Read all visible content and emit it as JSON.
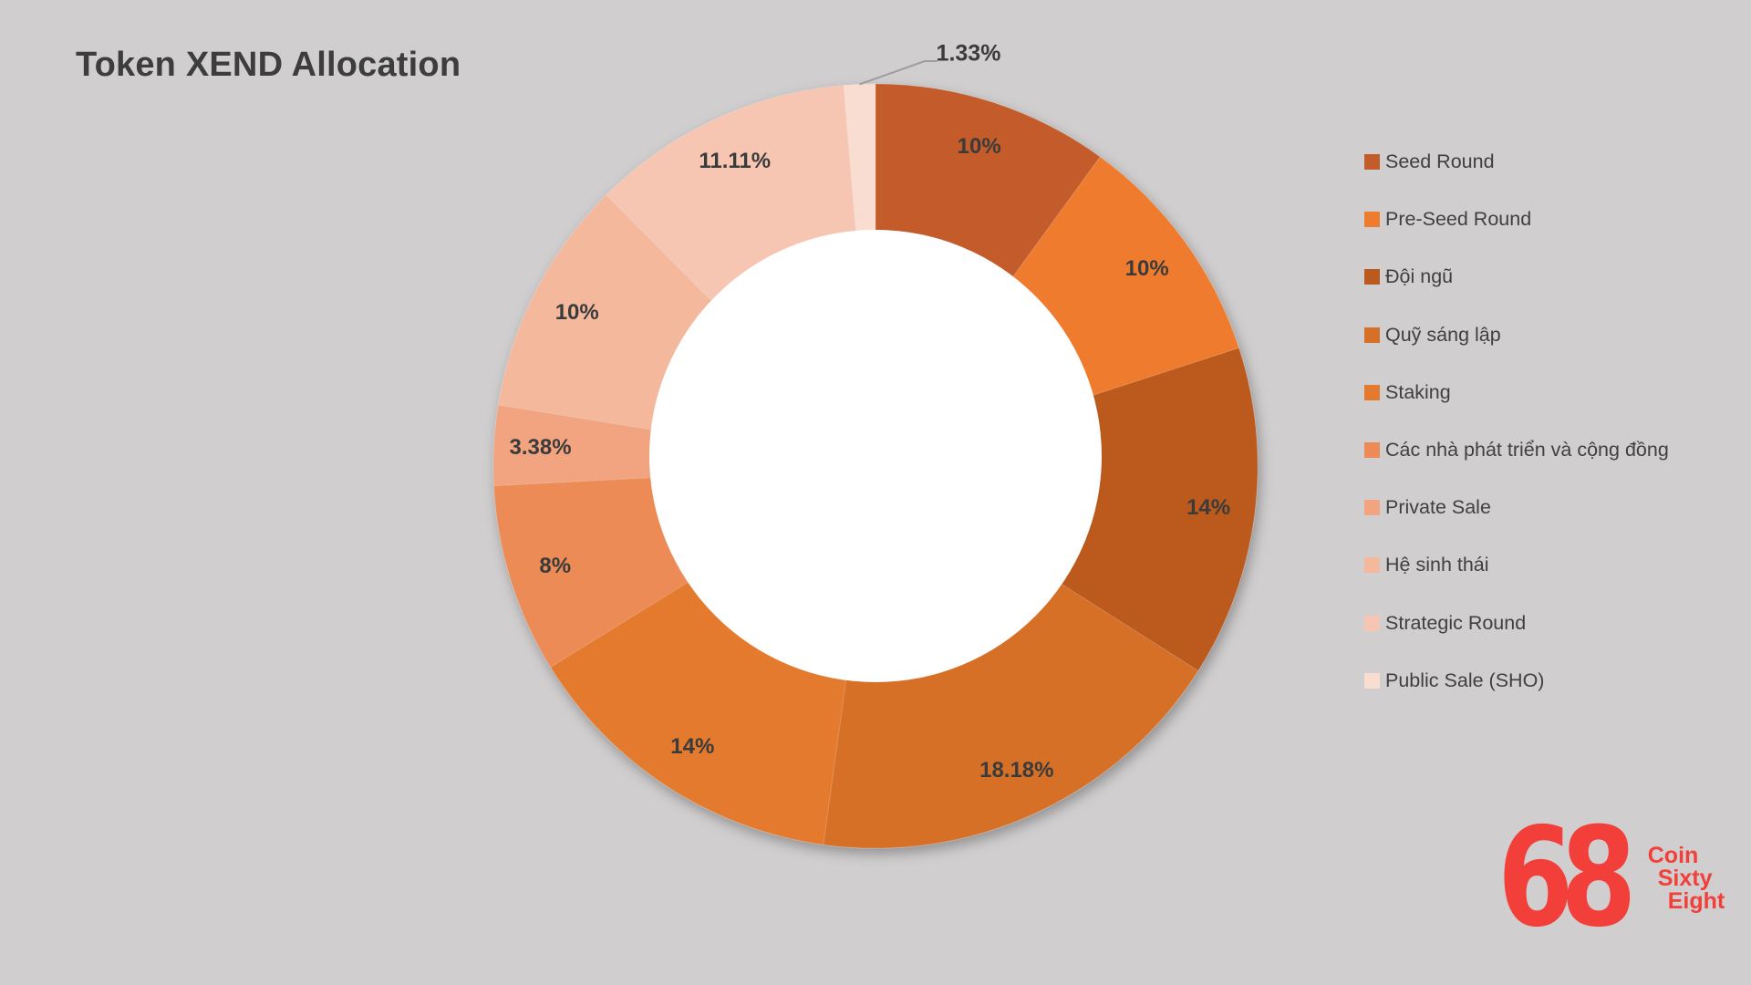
{
  "page": {
    "background_color": "#D0CECE",
    "label_color": "#3B3B3B",
    "leader_line_color": "#9E9E9E"
  },
  "chart_data": {
    "type": "pie",
    "subtype": "donut",
    "title": "Token XEND Allocation",
    "unit": "percent",
    "legend_position": "right",
    "hole_color": "#FFFFFF",
    "total": 100,
    "series": [
      {
        "name": "Seed Round",
        "value": 10,
        "label": "10%",
        "color": "#C35C2C",
        "label_outside": false
      },
      {
        "name": "Pre-Seed Round",
        "value": 10,
        "label": "10%",
        "color": "#EF7B2E",
        "label_outside": false
      },
      {
        "name": "Đội ngũ",
        "value": 14,
        "label": "14%",
        "color": "#BB5A1F",
        "label_outside": false
      },
      {
        "name": "Quỹ sáng lập",
        "value": 18.18,
        "label": "18.18%",
        "color": "#D66F28",
        "label_outside": false
      },
      {
        "name": "Staking",
        "value": 14,
        "label": "14%",
        "color": "#E47A2F",
        "label_outside": false
      },
      {
        "name": "Các nhà phát triển và cộng đồng",
        "value": 8,
        "label": "8%",
        "color": "#EC8B55",
        "label_outside": false
      },
      {
        "name": "Private Sale",
        "value": 3.38,
        "label": "3.38%",
        "color": "#F1A47F",
        "label_outside": false
      },
      {
        "name": "Hệ sinh thái",
        "value": 10,
        "label": "10%",
        "color": "#F4B89D",
        "label_outside": false
      },
      {
        "name": "Strategic Round",
        "value": 11.11,
        "label": "11.11%",
        "color": "#F6C6B2",
        "label_outside": false
      },
      {
        "name": "Public Sale (SHO)",
        "value": 1.33,
        "label": "1.33%",
        "color": "#FADDD1",
        "label_outside": true
      }
    ]
  },
  "logo": {
    "mark": "68",
    "line1": "Coin",
    "line2": "Sixty",
    "line3": "Eight",
    "color": "#F23F3A"
  }
}
